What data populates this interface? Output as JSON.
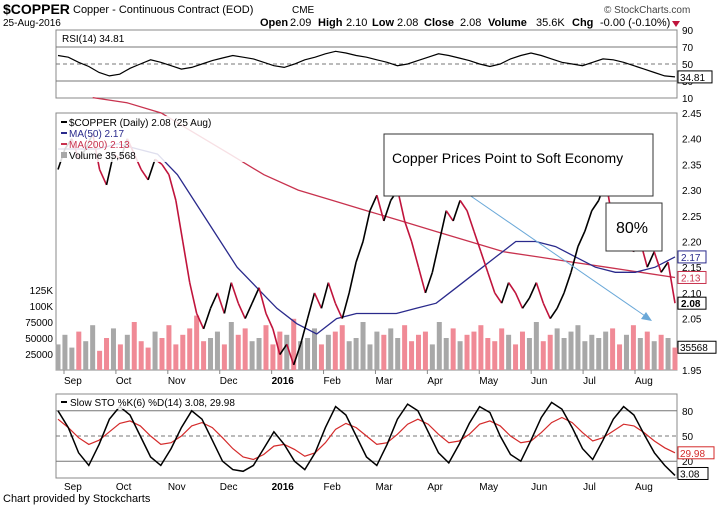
{
  "header": {
    "symbol": "$COPPER",
    "description": "Copper - Continuous Contract (EOD)",
    "exchange": "CME",
    "date": "25-Aug-2016",
    "open_label": "Open",
    "open": "2.09",
    "high_label": "High",
    "high": "2.10",
    "low_label": "Low",
    "low": "2.08",
    "close_label": "Close",
    "close": "2.08",
    "volume_label": "Volume",
    "volume": "35.6K",
    "chg_label": "Chg",
    "chg": "-0.00 (-0.10%)",
    "watermark": "© StockCharts.com"
  },
  "footer": {
    "credit": "Chart provided by Stockcharts"
  },
  "colors": {
    "price": "#000000",
    "down": "#c0143c",
    "ma50": "#2a2a8c",
    "ma200": "#c8324e",
    "volume_up": "#a8a8a8",
    "volume_down": "#f08a96",
    "rsi_fill": "#9a5a5a",
    "arrow": "#6aa8d8"
  },
  "chart_data": [
    {
      "type": "line",
      "panel": "rsi",
      "legend": "RSI(14) 34.81",
      "ylim": [
        10,
        90
      ],
      "yticks": [
        "90",
        "70",
        "50",
        "30",
        "10"
      ],
      "last_value": "34.81",
      "values": [
        60,
        58,
        52,
        47,
        40,
        36,
        38,
        45,
        50,
        55,
        52,
        48,
        44,
        46,
        50,
        54,
        57,
        60,
        58,
        56,
        52,
        48,
        46,
        50,
        55,
        58,
        62,
        65,
        63,
        60,
        58,
        55,
        52,
        48,
        50,
        54,
        58,
        62,
        60,
        57,
        54,
        50,
        47,
        50,
        56,
        60,
        63,
        60,
        56,
        52,
        50,
        48,
        52,
        56,
        55,
        52,
        48,
        44,
        40,
        36,
        34.81
      ]
    },
    {
      "type": "line",
      "panel": "price",
      "legend": [
        "$COPPER (Daily) 2.08 (25 Aug)",
        "MA(50) 2.17",
        "MA(200) 2.13",
        "Volume 35,568"
      ],
      "ylim": [
        1.95,
        2.45
      ],
      "yticks": [
        "2.45",
        "2.40",
        "2.35",
        "2.30",
        "2.25",
        "2.20",
        "2.15",
        "2.10",
        "2.05",
        "2.00",
        "1.95"
      ],
      "xticks": [
        "Sep",
        "Oct",
        "Nov",
        "Dec",
        "2016",
        "Feb",
        "Mar",
        "Apr",
        "May",
        "Jun",
        "Jul",
        "Aug"
      ],
      "price": [
        2.34,
        2.38,
        2.4,
        2.36,
        2.38,
        2.41,
        2.34,
        2.31,
        2.37,
        2.36,
        2.4,
        2.37,
        2.34,
        2.32,
        2.36,
        2.35,
        2.33,
        2.28,
        2.2,
        2.12,
        2.06,
        2.03,
        2.07,
        2.1,
        2.06,
        2.12,
        2.08,
        2.05,
        2.08,
        2.11,
        2.06,
        2.03,
        1.98,
        2.0,
        1.96,
        2.0,
        2.05,
        2.1,
        2.07,
        2.12,
        2.08,
        2.05,
        2.1,
        2.16,
        2.2,
        2.26,
        2.29,
        2.24,
        2.28,
        2.3,
        2.24,
        2.2,
        2.15,
        2.1,
        2.14,
        2.2,
        2.26,
        2.24,
        2.28,
        2.26,
        2.22,
        2.18,
        2.14,
        2.1,
        2.08,
        2.12,
        2.1,
        2.07,
        2.09,
        2.12,
        2.08,
        2.05,
        2.07,
        2.1,
        2.14,
        2.19,
        2.22,
        2.26,
        2.28,
        2.32,
        2.24,
        2.2,
        2.22,
        2.18,
        2.2,
        2.15,
        2.18,
        2.14,
        2.16,
        2.08
      ],
      "ma50": [
        2.38,
        2.38,
        2.38,
        2.39,
        2.38,
        2.37,
        2.33,
        2.27,
        2.21,
        2.15,
        2.11,
        2.07,
        2.04,
        2.02,
        2.05,
        2.06,
        2.06,
        2.06,
        2.07,
        2.08,
        2.11,
        2.14,
        2.17,
        2.2,
        2.2,
        2.19,
        2.17,
        2.15,
        2.14,
        2.14,
        2.15,
        2.17
      ],
      "ma200": [
        2.48,
        2.47,
        2.45,
        2.41,
        2.37,
        2.33,
        2.3,
        2.28,
        2.26,
        2.24,
        2.22,
        2.2,
        2.18,
        2.17,
        2.16,
        2.15,
        2.14,
        2.13
      ],
      "ma200_start_index": 5,
      "volume_ylim": [
        0,
        125000
      ],
      "volume_ticks": [
        "125K",
        "100K",
        "75000",
        "50000",
        "25000"
      ],
      "volume_last": "35568",
      "volume": [
        40,
        55,
        35,
        60,
        45,
        70,
        30,
        50,
        65,
        40,
        55,
        75,
        45,
        35,
        60,
        50,
        70,
        40,
        55,
        65,
        85,
        45,
        50,
        60,
        40,
        75,
        55,
        65,
        45,
        50,
        70,
        40,
        60,
        55,
        80,
        45,
        50,
        65,
        40,
        55,
        60,
        70,
        45,
        50,
        75,
        40,
        60,
        55,
        65,
        50,
        70,
        45,
        55,
        60,
        40,
        75,
        50,
        65,
        45,
        55,
        60,
        70,
        50,
        45,
        65,
        55,
        40,
        60,
        50,
        75,
        45,
        55,
        65,
        50,
        60,
        70,
        45,
        55,
        50,
        60,
        65,
        40,
        55,
        70,
        50,
        60,
        45,
        55,
        50,
        35
      ]
    },
    {
      "type": "line",
      "panel": "stochastic",
      "legend": "Slow STO %K(6) %D(14) 3.08, 29.98",
      "ylim": [
        0,
        100
      ],
      "yticks": [
        "80",
        "50",
        "20"
      ],
      "k_label": "3.08",
      "d_label": "29.98",
      "k": [
        80,
        60,
        30,
        15,
        40,
        70,
        85,
        75,
        50,
        25,
        15,
        35,
        60,
        80,
        70,
        45,
        20,
        10,
        8,
        15,
        35,
        55,
        40,
        20,
        10,
        30,
        60,
        85,
        75,
        50,
        25,
        15,
        40,
        70,
        88,
        80,
        55,
        30,
        18,
        40,
        65,
        85,
        78,
        50,
        28,
        20,
        45,
        72,
        90,
        82,
        60,
        35,
        22,
        45,
        70,
        85,
        75,
        52,
        30,
        15,
        3.08
      ],
      "d": [
        70,
        60,
        48,
        40,
        45,
        55,
        65,
        68,
        62,
        50,
        40,
        42,
        50,
        62,
        66,
        60,
        48,
        35,
        25,
        22,
        28,
        38,
        40,
        34,
        26,
        30,
        42,
        58,
        65,
        60,
        50,
        40,
        42,
        52,
        64,
        70,
        64,
        52,
        42,
        44,
        52,
        64,
        68,
        62,
        50,
        42,
        44,
        54,
        66,
        72,
        66,
        54,
        44,
        48,
        56,
        64,
        62,
        54,
        44,
        36,
        29.98
      ]
    }
  ],
  "annotations": {
    "callout": "Copper Prices Point to Soft Economy",
    "percent": "80%"
  }
}
